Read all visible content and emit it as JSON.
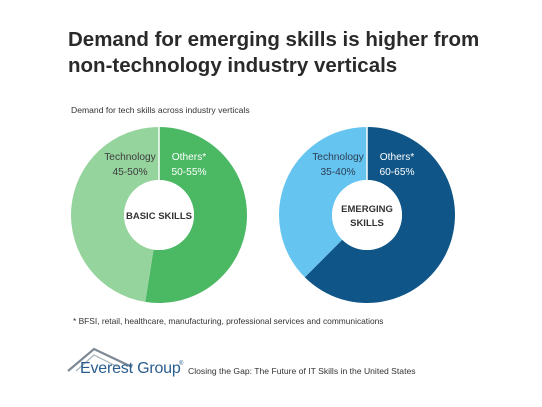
{
  "title": "Demand for emerging skills is higher from non-technology industry verticals",
  "subtitle": "Demand for tech skills across industry verticals",
  "chart_data": [
    {
      "type": "pie",
      "center_label": "BASIC SKILLS",
      "slices": [
        {
          "name": "Technology",
          "range_label": "45-50%",
          "value": 47.5,
          "color": "#96d49e"
        },
        {
          "name": "Others*",
          "range_label": "50-55%",
          "value": 52.5,
          "color": "#4bb963"
        }
      ]
    },
    {
      "type": "pie",
      "center_label_lines": [
        "EMERGING",
        "SKILLS"
      ],
      "slices": [
        {
          "name": "Technology",
          "range_label": "35-40%",
          "value": 37.5,
          "color": "#66c4f0"
        },
        {
          "name": "Others*",
          "range_label": "60-65%",
          "value": 62.5,
          "color": "#0f5587"
        }
      ]
    }
  ],
  "footnote": "* BFSI, retail, healthcare, manufacturing, professional services and communications",
  "logo": {
    "text": "Everest Group",
    "reg": "®",
    "icon": "everest-peak-icon"
  },
  "source": "Closing the Gap: The Future of IT Skills in the United States"
}
